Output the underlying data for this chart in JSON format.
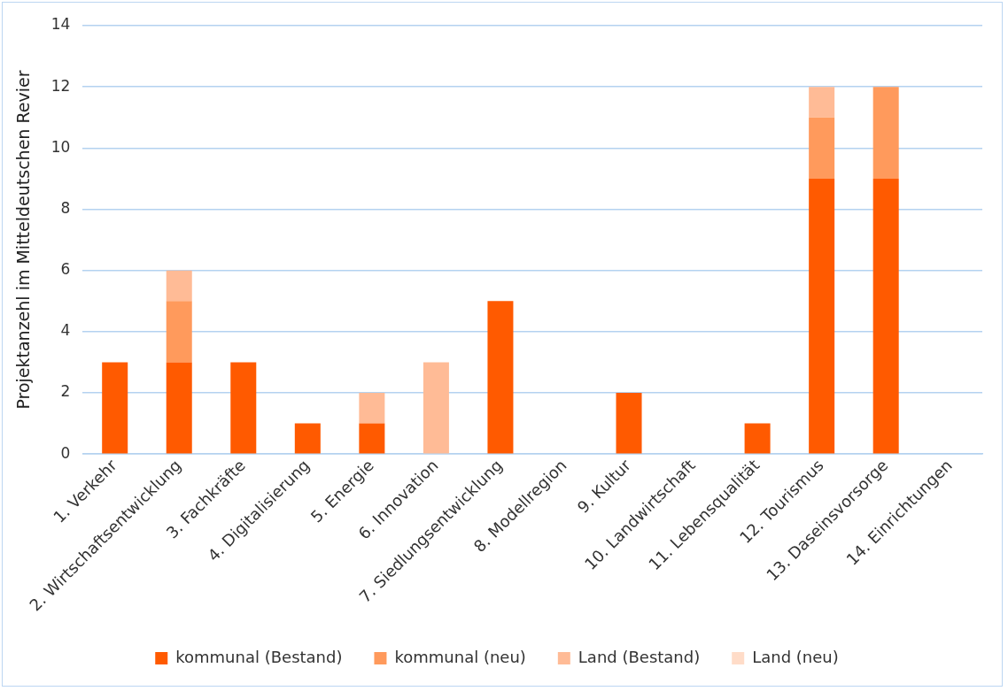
{
  "chart_data": {
    "type": "bar",
    "stacked": true,
    "ylabel": "Projektanzehl im Mitteldeutschen Revier",
    "categories": [
      "1. Verkehr",
      "2. Wirtschaftsentwicklung",
      "3. Fachkräfte",
      "4. Digitalisierung",
      "5. Energie",
      "6. Innovation",
      "7. Siedlungsentwicklung",
      "8. Modellregion",
      "9. Kultur",
      "10. Landwirtschaft",
      "11. Lebensqualität",
      "12. Tourismus",
      "13. Daseinsvorsorge",
      "14. Einrichtungen"
    ],
    "series": [
      {
        "name": "kommunal (Bestand)",
        "color": "#ff5a00",
        "values": [
          3,
          3,
          3,
          1,
          1,
          0,
          5,
          0,
          2,
          0,
          1,
          9,
          9,
          0
        ]
      },
      {
        "name": "kommunal (neu)",
        "color": "#ff9a5c",
        "values": [
          0,
          2,
          0,
          0,
          0,
          0,
          0,
          0,
          0,
          0,
          0,
          2,
          3,
          0
        ]
      },
      {
        "name": "Land (Bestand)",
        "color": "#ffbb96",
        "values": [
          0,
          1,
          0,
          0,
          1,
          3,
          0,
          0,
          0,
          0,
          0,
          1,
          0,
          0
        ]
      },
      {
        "name": "Land (neu)",
        "color": "#ffdcc8",
        "values": [
          0,
          0,
          0,
          0,
          0,
          0,
          0,
          0,
          0,
          0,
          0,
          0,
          0,
          0
        ]
      }
    ],
    "ylim": [
      0,
      14
    ],
    "yticks": [
      0,
      2,
      4,
      6,
      8,
      10,
      12,
      14
    ],
    "grid": "y",
    "legend": "bottom"
  }
}
